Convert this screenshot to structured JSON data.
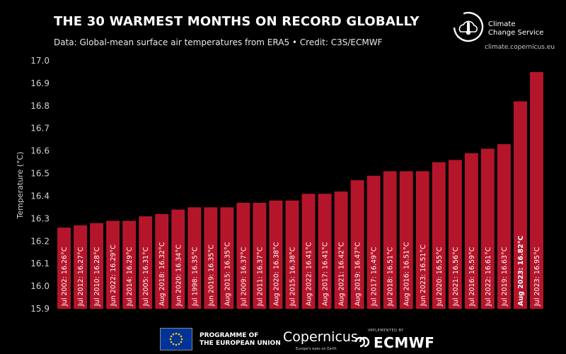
{
  "header": {
    "title": "THE 30 WARMEST MONTHS ON RECORD GLOBALLY",
    "subtitle": "Data: Global-mean surface air temperatures from ERA5 • Credit: C3S/ECMWF"
  },
  "branding": {
    "c3s_name": "Climate\nChange Service",
    "c3s_url": "climate.copernicus.eu"
  },
  "footer": {
    "eu_text": "PROGRAMME OF\nTHE EUROPEAN UNION",
    "copernicus": "Copernicus",
    "copernicus_tagline": "Europe's eyes on Earth",
    "implemented_by": "IMPLEMENTED BY",
    "ecmwf": "ECMWF"
  },
  "colors": {
    "bar": "#b5152b",
    "background": "#000000",
    "text": "#ffffff"
  },
  "chart_data": {
    "type": "bar",
    "title": "THE 30 WARMEST MONTHS ON RECORD GLOBALLY",
    "xlabel": "",
    "ylabel": "Temperature (°C)",
    "ylim": [
      15.9,
      17.0
    ],
    "yticks": [
      "15.9",
      "16.0",
      "16.1",
      "16.2",
      "16.3",
      "16.4",
      "16.5",
      "16.6",
      "16.7",
      "16.8",
      "16.9",
      "17.0"
    ],
    "grid": false,
    "categories": [
      "Jul 2002: 16.26°C",
      "Jul 2012: 16.27°C",
      "Jul 2010: 16.28°C",
      "Jun 2022: 16.29°C",
      "Jul 2014: 16.29°C",
      "Jul 2005: 16.31°C",
      "Aug 2018: 16.32°C",
      "Jun 2020: 16.34°C",
      "Jul 1998: 16.35°C",
      "Jun 2019: 16.35°C",
      "Aug 2015: 16.35°C",
      "Jul 2009: 16.37°C",
      "Jul 2011: 16.37°C",
      "Aug 2020: 16.38°C",
      "Jul 2015: 16.38°C",
      "Aug 2022: 16.41°C",
      "Aug 2017: 16.41°C",
      "Aug 2021: 16.42°C",
      "Aug 2019: 16.47°C",
      "Jul 2017: 16.49°C",
      "Jul 2018: 16.51°C",
      "Aug 2016: 16.51°C",
      "Jun 2023: 16.51°C",
      "Jul 2020: 16.55°C",
      "Jul 2021: 16.56°C",
      "Jul 2016: 16.59°C",
      "Jul 2022: 16.61°C",
      "Jul 2019: 16.63°C",
      "Aug 2023: 16.82°C",
      "Jul 2023: 16.95°C"
    ],
    "values": [
      16.26,
      16.27,
      16.28,
      16.29,
      16.29,
      16.31,
      16.32,
      16.34,
      16.35,
      16.35,
      16.35,
      16.37,
      16.37,
      16.38,
      16.38,
      16.41,
      16.41,
      16.42,
      16.47,
      16.49,
      16.51,
      16.51,
      16.51,
      16.55,
      16.56,
      16.59,
      16.61,
      16.63,
      16.82,
      16.95
    ],
    "highlighted": [
      "Aug 2023: 16.82°C"
    ]
  }
}
